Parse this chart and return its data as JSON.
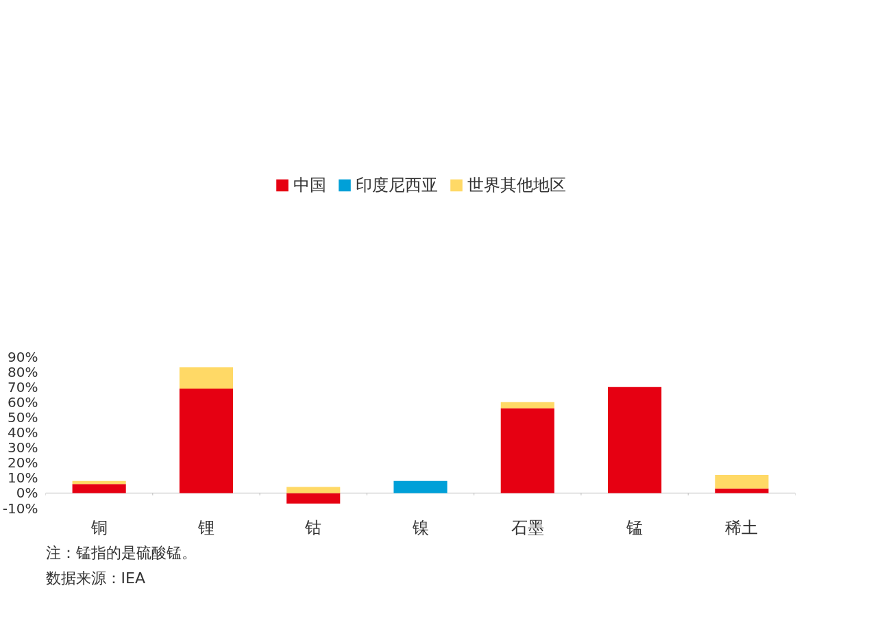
{
  "chart_data": {
    "type": "bar",
    "stacked": true,
    "categories": [
      "铜",
      "锂",
      "钴",
      "镍",
      "石墨",
      "锰",
      "稀土"
    ],
    "series": [
      {
        "name": "中国",
        "color": "#e60012",
        "values": [
          6,
          69,
          -7,
          0,
          56,
          70,
          3
        ]
      },
      {
        "name": "印度尼西亚",
        "color": "#00a0d8",
        "values": [
          0,
          0,
          0,
          8,
          0,
          0,
          0
        ]
      },
      {
        "name": "世界其他地区",
        "color": "#ffd966",
        "values": [
          2,
          14,
          4,
          0,
          4,
          0,
          9
        ]
      }
    ],
    "ylim": [
      -10,
      90
    ],
    "yticks": [
      {
        "value": -10,
        "label": "-10%"
      },
      {
        "value": 0,
        "label": "0%"
      },
      {
        "value": 10,
        "label": "10%"
      },
      {
        "value": 20,
        "label": "20%"
      },
      {
        "value": 30,
        "label": "30%"
      },
      {
        "value": 40,
        "label": "40%"
      },
      {
        "value": 50,
        "label": "50%"
      },
      {
        "value": 60,
        "label": "60%"
      },
      {
        "value": 70,
        "label": "70%"
      },
      {
        "value": 80,
        "label": "80%"
      },
      {
        "value": 90,
        "label": "90%"
      }
    ],
    "grid": false,
    "legend": "top",
    "annotations": [
      "注：锰指的是硫酸锰。",
      "数据来源：IEA"
    ]
  }
}
